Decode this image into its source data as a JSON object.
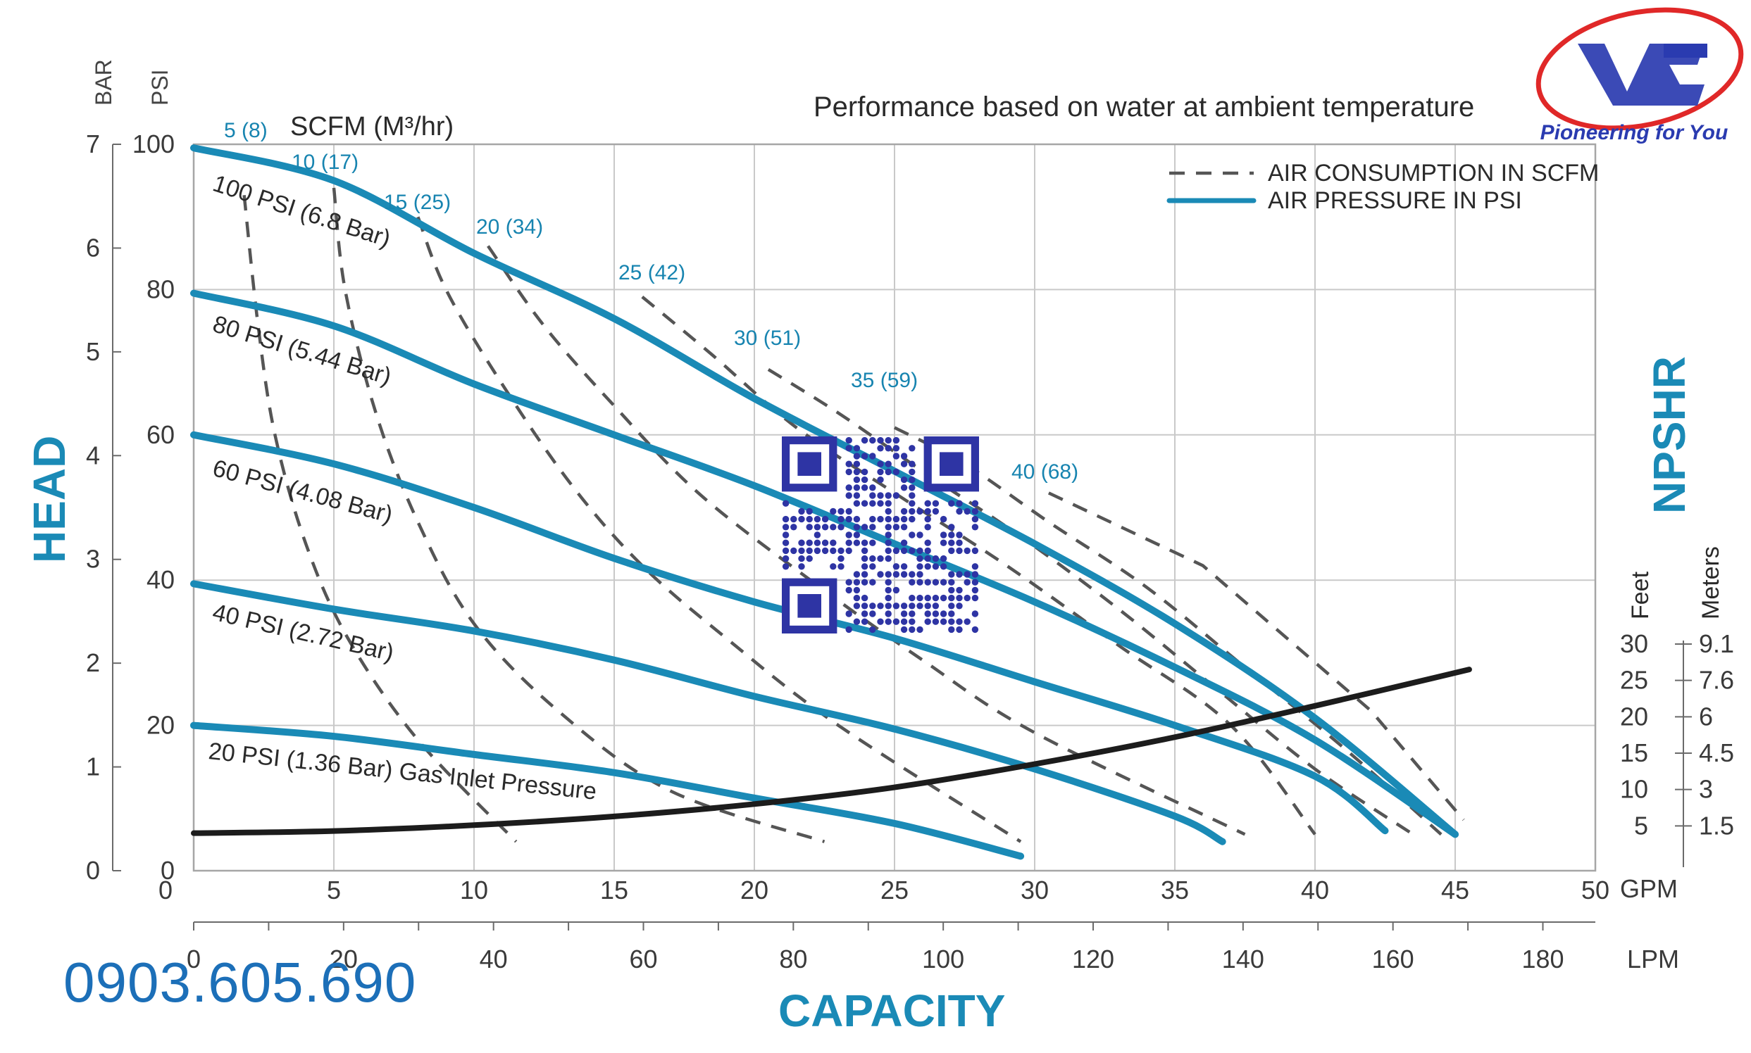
{
  "chart_data": {
    "type": "line",
    "title": "Performance based on water at ambient temperature",
    "xlabel": "CAPACITY",
    "ylabel": "HEAD",
    "right_label": "NPSHR",
    "x_gpm": {
      "range": [
        0,
        50
      ],
      "ticks": [
        "0",
        "5",
        "10",
        "15",
        "20",
        "25",
        "30",
        "35",
        "40",
        "45",
        "50"
      ],
      "unit": "GPM"
    },
    "x_lpm": {
      "range": [
        0,
        187
      ],
      "ticks": [
        "0",
        "20",
        "40",
        "60",
        "80",
        "100",
        "120",
        "140",
        "160",
        "180"
      ],
      "unit": "LPM"
    },
    "y_psi": {
      "range": [
        0,
        100
      ],
      "ticks": [
        "0",
        "20",
        "40",
        "60",
        "80",
        "100"
      ],
      "unit": "PSI"
    },
    "y_bar": {
      "range": [
        0,
        7
      ],
      "ticks": [
        "0",
        "1",
        "2",
        "3",
        "4",
        "5",
        "6",
        "7"
      ],
      "unit": "BAR"
    },
    "npsh_feet": [
      "30",
      "25",
      "20",
      "15",
      "10",
      "5"
    ],
    "npsh_meters": [
      "9.1",
      "7.6",
      "6",
      "4.5",
      "3",
      "1.5"
    ],
    "npsh_feet_label": "Feet",
    "npsh_meters_label": "Meters",
    "legend": [
      {
        "label": "AIR CONSUMPTION IN SCFM",
        "style": "dashed"
      },
      {
        "label": "AIR PRESSURE IN PSI",
        "style": "solid"
      }
    ],
    "air_unit_label": "SCFM (M³/hr)",
    "pressure_series": [
      {
        "name": "100 PSI (6.8 Bar)",
        "points": [
          [
            0,
            99.5
          ],
          [
            5,
            95
          ],
          [
            10,
            85
          ],
          [
            15,
            76
          ],
          [
            20,
            65
          ],
          [
            25,
            55
          ],
          [
            30,
            45
          ],
          [
            35,
            34
          ],
          [
            40,
            21
          ],
          [
            45,
            5
          ]
        ]
      },
      {
        "name": "80 PSI (5.44 Bar)",
        "points": [
          [
            0,
            79.5
          ],
          [
            5,
            75
          ],
          [
            10,
            67
          ],
          [
            15,
            60
          ],
          [
            20,
            53
          ],
          [
            25,
            45
          ],
          [
            30,
            37
          ],
          [
            35,
            28
          ],
          [
            40,
            18
          ],
          [
            45,
            5
          ]
        ]
      },
      {
        "name": "60 PSI (4.08 Bar)",
        "points": [
          [
            0,
            60
          ],
          [
            5,
            56
          ],
          [
            10,
            50
          ],
          [
            15,
            43
          ],
          [
            20,
            37
          ],
          [
            25,
            32
          ],
          [
            30,
            26
          ],
          [
            35,
            20
          ],
          [
            40,
            13
          ],
          [
            42.5,
            5.5
          ]
        ]
      },
      {
        "name": "40 PSI (2.72 Bar)",
        "points": [
          [
            0,
            39.5
          ],
          [
            5,
            36
          ],
          [
            10,
            33
          ],
          [
            15,
            29
          ],
          [
            20,
            24
          ],
          [
            25,
            19.5
          ],
          [
            30,
            14
          ],
          [
            35,
            7.5
          ],
          [
            36.7,
            4
          ]
        ]
      },
      {
        "name": "20 PSI (1.36 Bar) Gas Inlet Pressure",
        "points": [
          [
            0,
            20
          ],
          [
            5,
            18.5
          ],
          [
            10,
            16
          ],
          [
            15,
            13.5
          ],
          [
            20,
            10
          ],
          [
            25,
            6.5
          ],
          [
            29.5,
            2
          ]
        ]
      }
    ],
    "air_series": [
      {
        "name": "5 (8)",
        "points": [
          [
            1.8,
            93
          ],
          [
            2.3,
            75
          ],
          [
            2.9,
            60
          ],
          [
            4,
            45
          ],
          [
            5.5,
            32
          ],
          [
            8,
            18
          ],
          [
            11.5,
            4
          ]
        ]
      },
      {
        "name": "10 (17)",
        "points": [
          [
            5,
            94
          ],
          [
            5.4,
            80
          ],
          [
            6.5,
            63
          ],
          [
            8,
            48
          ],
          [
            10,
            34
          ],
          [
            13,
            22
          ],
          [
            17,
            11
          ],
          [
            22.5,
            4
          ]
        ]
      },
      {
        "name": "15 (25)",
        "points": [
          [
            8,
            90
          ],
          [
            9,
            80
          ],
          [
            11,
            67
          ],
          [
            13.5,
            53
          ],
          [
            16,
            42
          ],
          [
            19,
            32
          ],
          [
            23,
            20
          ],
          [
            29.5,
            4
          ]
        ]
      },
      {
        "name": "20 (34)",
        "points": [
          [
            10.5,
            86
          ],
          [
            12.5,
            75
          ],
          [
            15,
            64
          ],
          [
            18,
            52
          ],
          [
            22,
            40
          ],
          [
            26,
            29
          ],
          [
            30,
            19
          ],
          [
            37.5,
            5
          ]
        ]
      },
      {
        "name": "25 (42)",
        "points": [
          [
            16,
            79
          ],
          [
            18.5,
            71
          ],
          [
            21.5,
            61
          ],
          [
            25,
            52
          ],
          [
            29,
            42
          ],
          [
            33,
            31
          ],
          [
            37,
            20
          ],
          [
            40,
            5
          ]
        ]
      },
      {
        "name": "30 (51)",
        "points": [
          [
            20.5,
            69
          ],
          [
            23,
            63
          ],
          [
            26,
            55
          ],
          [
            29.5,
            46
          ],
          [
            33,
            36
          ],
          [
            36.5,
            25
          ],
          [
            40,
            14
          ],
          [
            43.5,
            5
          ]
        ]
      },
      {
        "name": "35 (59)",
        "points": [
          [
            25,
            61
          ],
          [
            27.5,
            56
          ],
          [
            30.5,
            48
          ],
          [
            34,
            39
          ],
          [
            37.5,
            28
          ],
          [
            41,
            17
          ],
          [
            44.5,
            5
          ]
        ]
      }
    ],
    "air_labels": [
      {
        "name": "5 (8)"
      },
      {
        "name": "10 (17)"
      },
      {
        "name": "15 (25)"
      },
      {
        "name": "20 (34)"
      },
      {
        "name": "25 (42)"
      },
      {
        "name": "30 (51)"
      },
      {
        "name": "35 (59)"
      },
      {
        "name": "40 (68)"
      }
    ],
    "npshr_curve": {
      "name": "NPSHR",
      "points": [
        [
          0,
          4
        ],
        [
          5,
          4.3
        ],
        [
          10,
          5.1
        ],
        [
          15,
          6.3
        ],
        [
          20,
          8
        ],
        [
          25,
          10.3
        ],
        [
          30,
          13.5
        ],
        [
          35,
          17.2
        ],
        [
          40,
          21.5
        ],
        [
          45.5,
          26.5
        ]
      ]
    }
  },
  "phone": "0903.605.690",
  "logo_tagline": "Pioneering for You",
  "colors": {
    "blue": "#1a8ab6",
    "phone": "#1c6fb8",
    "logo_red": "#e02828",
    "logo_blue": "#2a3bb0"
  }
}
